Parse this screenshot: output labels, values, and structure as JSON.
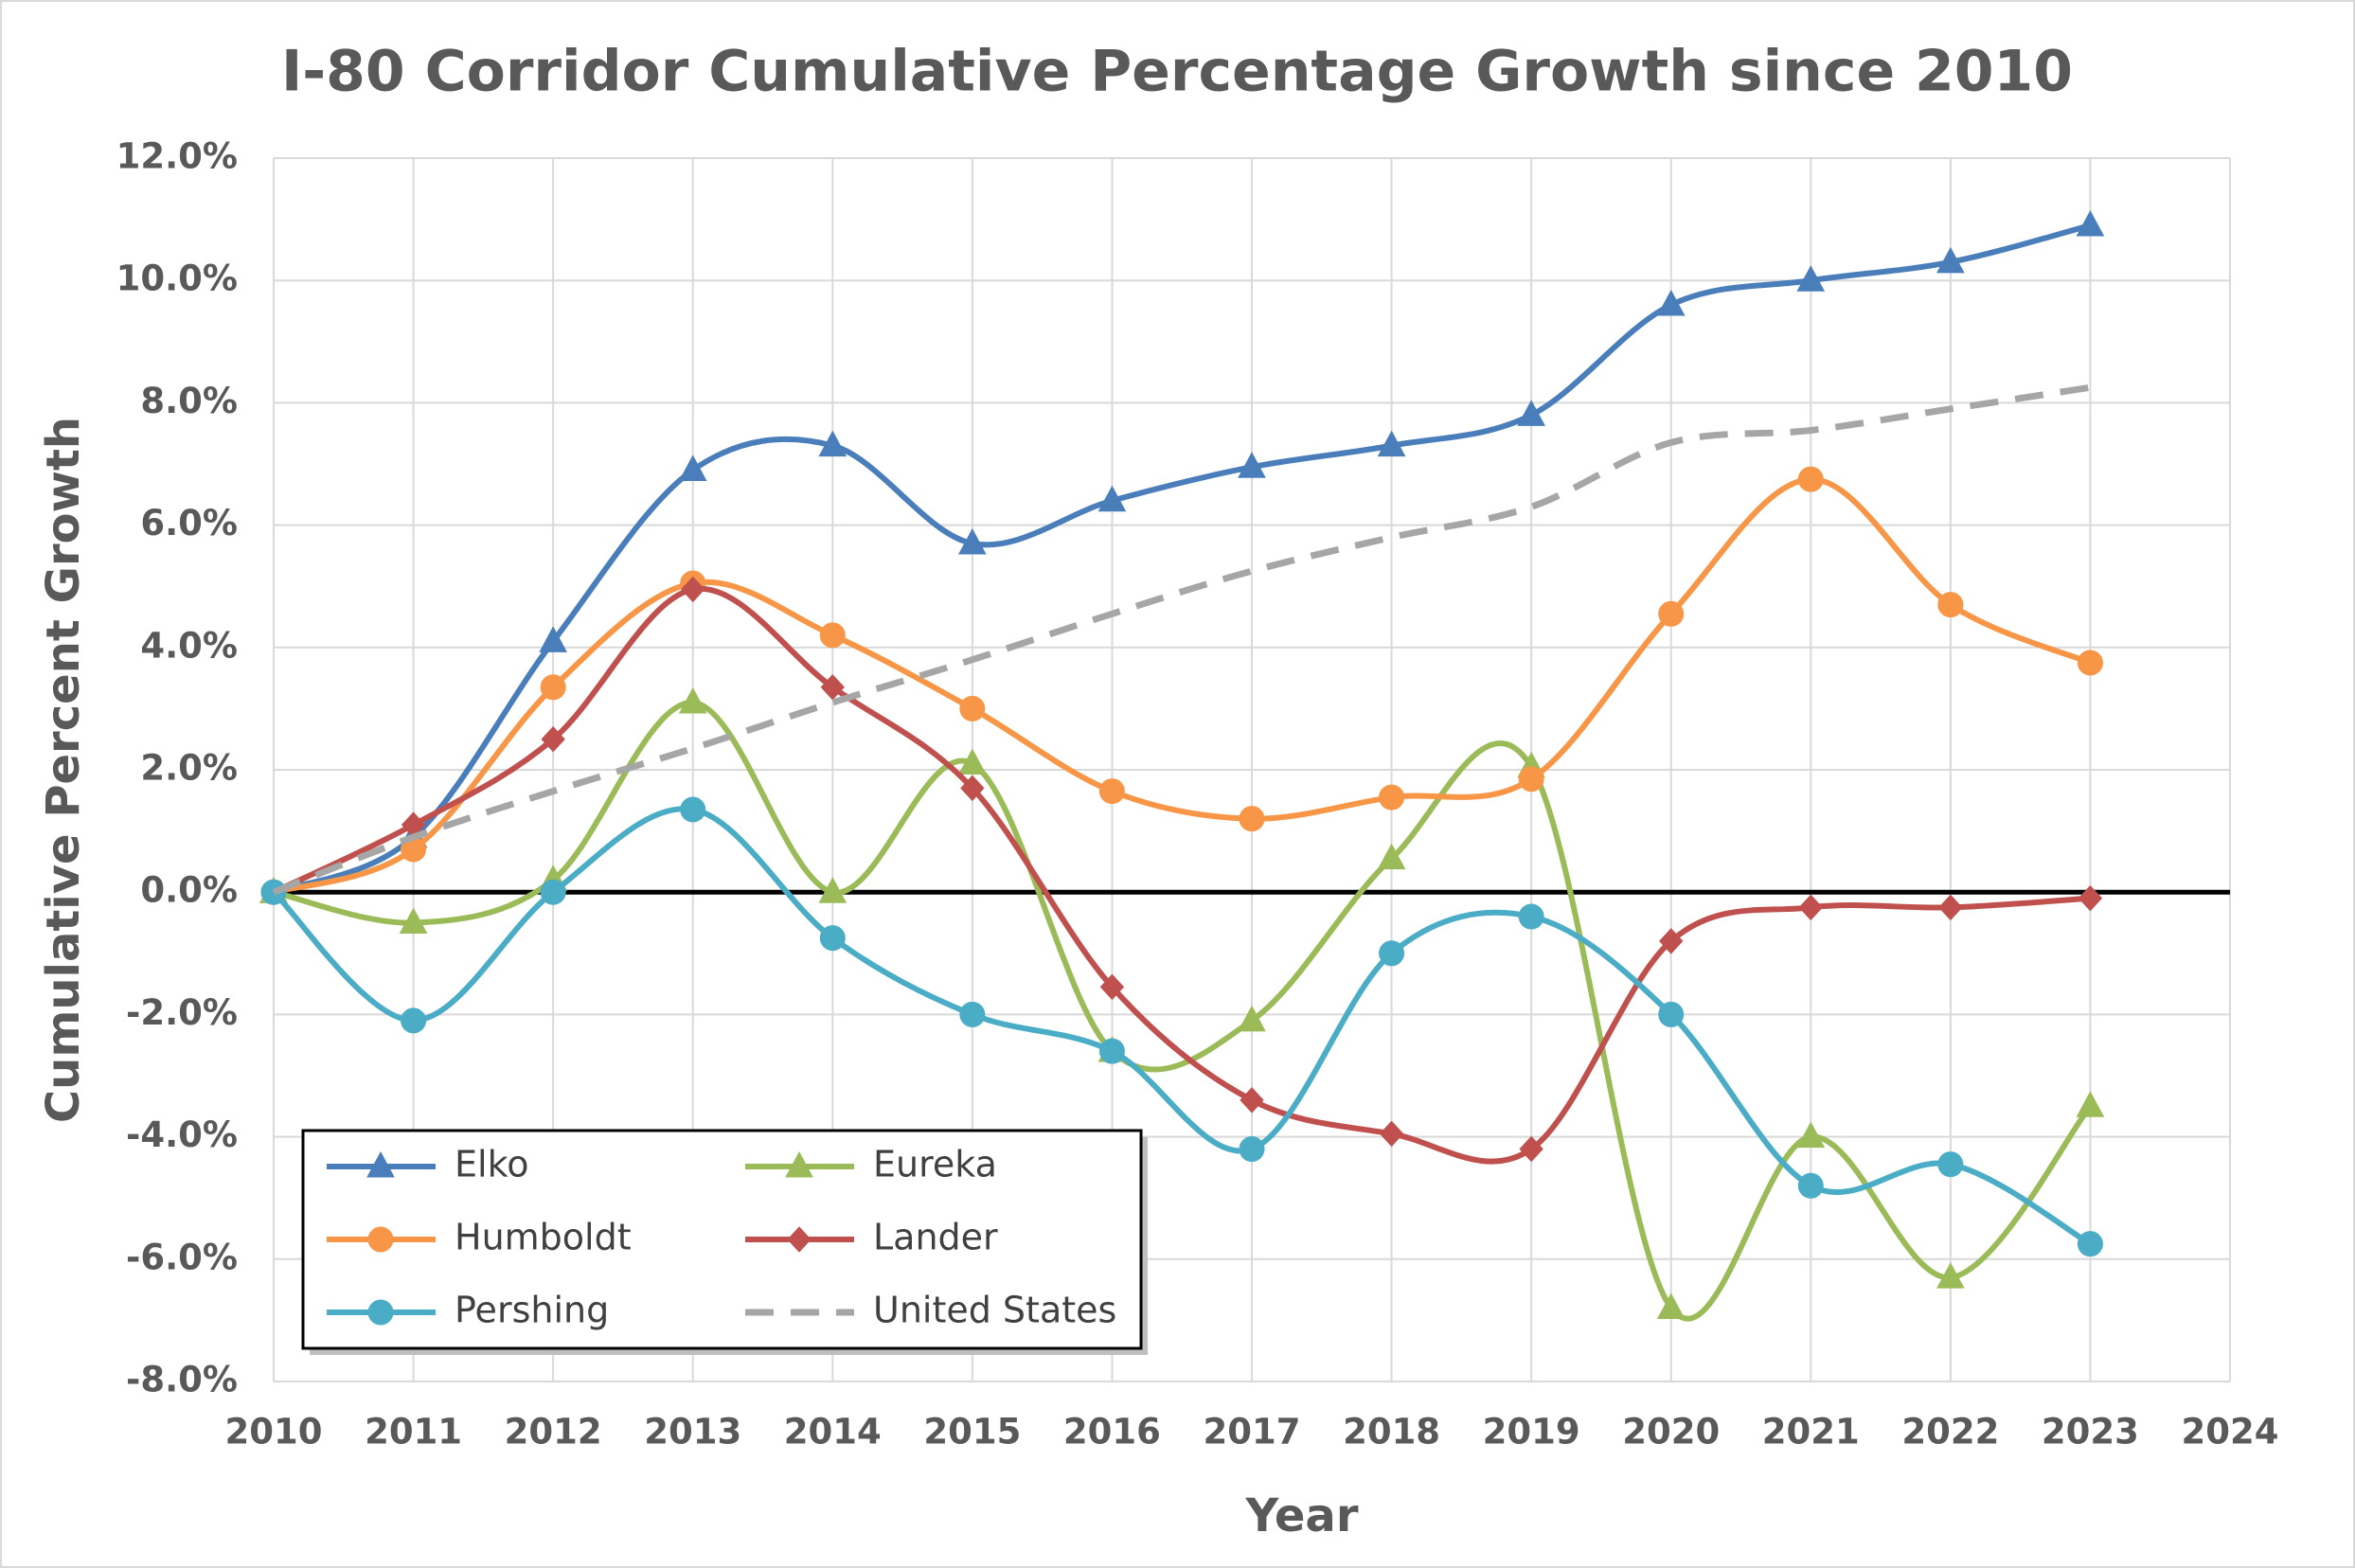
{
  "chart_data": {
    "type": "line",
    "title": "I-80 Corridor Cumulative Percentage Growth since 2010",
    "x_label": "Year",
    "y_label": "Cumulative Percent Growth",
    "x": [
      2010,
      2011,
      2012,
      2013,
      2014,
      2015,
      2016,
      2017,
      2018,
      2019,
      2020,
      2021,
      2022,
      2023
    ],
    "series": [
      {
        "name": "Elko",
        "color": "#4a7ebb",
        "marker": "triangle",
        "values": [
          0,
          0.9,
          4.1,
          6.9,
          7.3,
          5.7,
          6.4,
          6.95,
          7.3,
          7.8,
          9.6,
          10.0,
          10.3,
          10.9
        ]
      },
      {
        "name": "Eureka",
        "color": "#9bbb59",
        "marker": "triangle",
        "values": [
          0,
          -0.5,
          0.2,
          3.1,
          0,
          2.1,
          -2.6,
          -2.1,
          0.55,
          2.05,
          -6.8,
          -4.0,
          -6.3,
          -3.5
        ]
      },
      {
        "name": "Humboldt",
        "color": "#f79646",
        "marker": "circle",
        "values": [
          0,
          0.7,
          3.35,
          5.05,
          4.2,
          3.0,
          1.65,
          1.2,
          1.55,
          1.85,
          4.55,
          6.75,
          4.7,
          3.75
        ]
      },
      {
        "name": "Lander",
        "color": "#c0504d",
        "marker": "diamond",
        "values": [
          0,
          1.1,
          2.5,
          4.95,
          3.35,
          1.7,
          -1.55,
          -3.4,
          -3.95,
          -4.2,
          -0.8,
          -0.25,
          -0.25,
          -0.1
        ]
      },
      {
        "name": "Pershing",
        "color": "#4bacc6",
        "marker": "circle",
        "values": [
          0,
          -2.1,
          0,
          1.35,
          -0.75,
          -2.0,
          -2.6,
          -4.2,
          -1.0,
          -0.4,
          -2.0,
          -4.8,
          -4.45,
          -5.75
        ]
      },
      {
        "name": "United States",
        "color": "#a6a6a6",
        "marker": "none",
        "dashed": true,
        "values": [
          0,
          0.9,
          1.65,
          2.35,
          3.1,
          3.8,
          4.55,
          5.25,
          5.8,
          6.3,
          7.35,
          7.55,
          7.9,
          8.25
        ]
      }
    ],
    "xlim": [
      2010,
      2024
    ],
    "xticks": [
      2010,
      2011,
      2012,
      2013,
      2014,
      2015,
      2016,
      2017,
      2018,
      2019,
      2020,
      2021,
      2022,
      2023,
      2024
    ],
    "ylim": [
      -8,
      12
    ],
    "yticks": [
      {
        "value": -8,
        "label": "-8.0%"
      },
      {
        "value": -6,
        "label": "-6.0%"
      },
      {
        "value": -4,
        "label": "-4.0%"
      },
      {
        "value": -2,
        "label": "-2.0%"
      },
      {
        "value": 0,
        "label": "0.0%"
      },
      {
        "value": 2,
        "label": "2.0%"
      },
      {
        "value": 4,
        "label": "4.0%"
      },
      {
        "value": 6,
        "label": "6.0%"
      },
      {
        "value": 8,
        "label": "8.0%"
      },
      {
        "value": 10,
        "label": "10.0%"
      },
      {
        "value": 12,
        "label": "12.0%"
      }
    ],
    "grid": true,
    "smooth": true,
    "legend": "lower left"
  }
}
